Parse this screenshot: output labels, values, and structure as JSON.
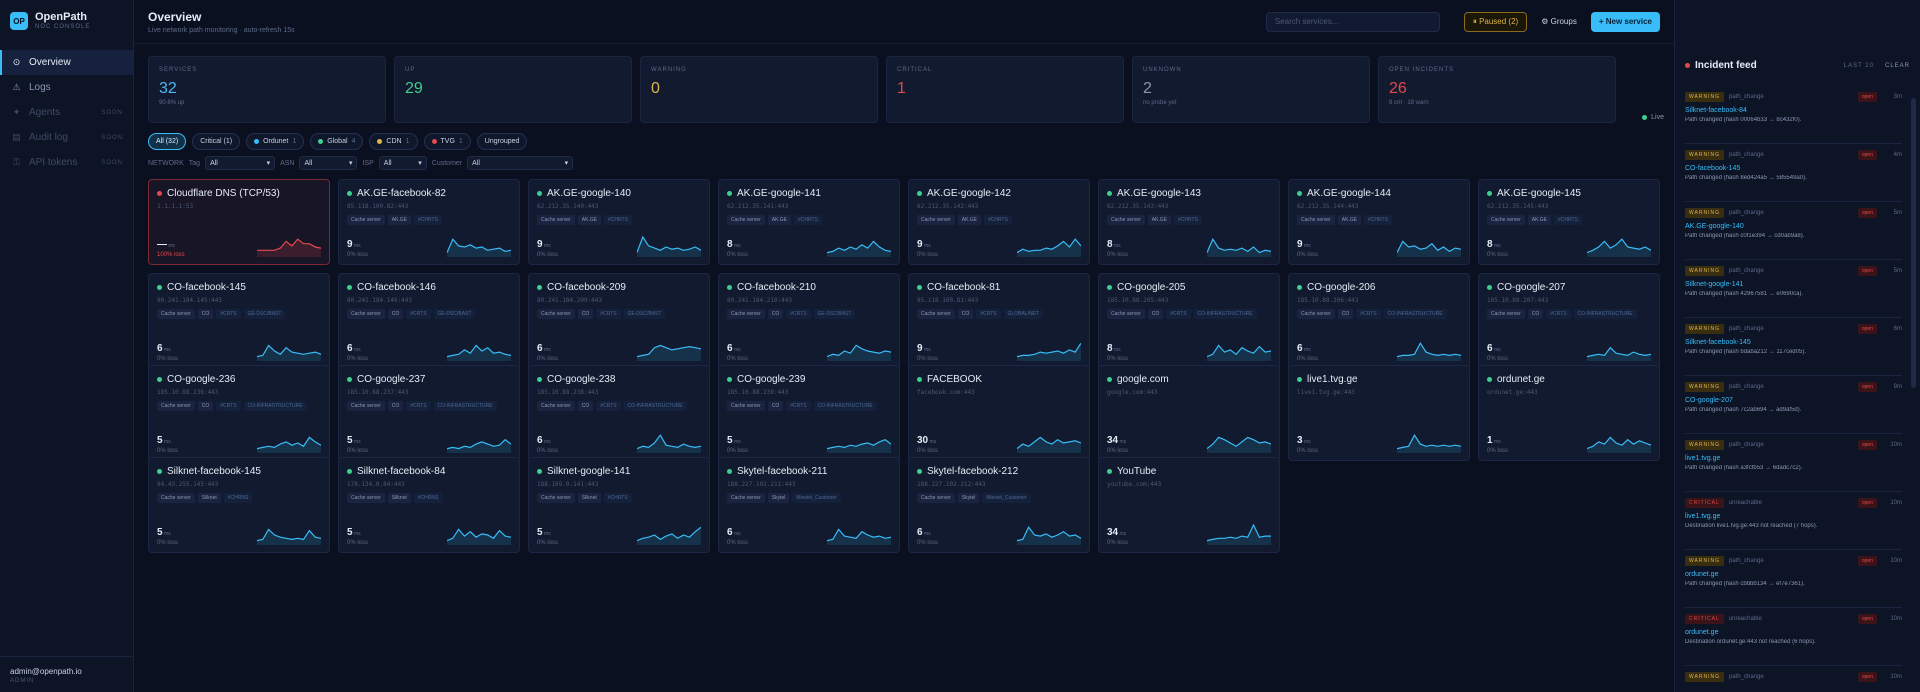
{
  "brand": {
    "name": "OpenPath",
    "sub": "NOC CONSOLE",
    "logo": "OP"
  },
  "nav": [
    {
      "label": "Overview",
      "icon": "grid-icon",
      "active": true,
      "badge": ""
    },
    {
      "label": "Logs",
      "icon": "warning-icon",
      "active": false,
      "badge": ""
    },
    {
      "label": "Agents",
      "icon": "agent-icon",
      "active": false,
      "badge": "SOON",
      "dim": true
    },
    {
      "label": "Audit log",
      "icon": "doc-icon",
      "active": false,
      "badge": "SOON",
      "dim": true
    },
    {
      "label": "API tokens",
      "icon": "key-icon",
      "active": false,
      "badge": "SOON",
      "dim": true
    }
  ],
  "user": {
    "email": "admin@openpath.io",
    "role": "ADMIN"
  },
  "header": {
    "title": "Overview",
    "subtitle": "Live network path monitoring · auto-refresh 15s",
    "search_placeholder": "Search services...",
    "paused": "⏸ Paused (2)",
    "groups": "⚙ Groups",
    "new_service": "+ New service"
  },
  "stats": [
    {
      "label": "SERVICES",
      "value": "32",
      "sub": "90.6% up",
      "color": "#4cb8f5"
    },
    {
      "label": "UP",
      "value": "29",
      "sub": "",
      "color": "#3fcf8e"
    },
    {
      "label": "WARNING",
      "value": "0",
      "sub": "",
      "color": "#e0b54a"
    },
    {
      "label": "CRITICAL",
      "value": "1",
      "sub": "",
      "color": "#e5484d"
    },
    {
      "label": "UNKNOWN",
      "value": "2",
      "sub": "no probe yet",
      "color": "#8b97b1"
    },
    {
      "label": "OPEN INCIDENTS",
      "value": "26",
      "sub": "8 crit · 18 warn",
      "color": "#e5484d"
    }
  ],
  "live_label": "Live",
  "chips": [
    {
      "label": "All (32)",
      "count": "",
      "dot": "",
      "active": true
    },
    {
      "label": "Critical (1)",
      "count": "",
      "dot": "",
      "active": false
    },
    {
      "label": "Ordunet",
      "count": "1",
      "dot": "#38bdf8",
      "active": false
    },
    {
      "label": "Global",
      "count": "4",
      "dot": "#3fcf8e",
      "active": false
    },
    {
      "label": "CDN",
      "count": "1",
      "dot": "#e0b54a",
      "active": false
    },
    {
      "label": "TVG",
      "count": "1",
      "dot": "#e5484d",
      "active": false
    },
    {
      "label": "Ungrouped",
      "count": "",
      "dot": "",
      "active": false
    }
  ],
  "filters": {
    "network": "NETWORK",
    "tag": "Tag",
    "asn": "ASN",
    "isp": "ISP",
    "customer": "Customer",
    "all": "All"
  },
  "services": [
    {
      "name": "Cloudflare DNS (TCP/53)",
      "host": "1.1.1.1:53",
      "tags": [],
      "ms": "—",
      "loss": "100% loss",
      "status": "crit",
      "spark": [
        6,
        6,
        6,
        6,
        8,
        14,
        10,
        16,
        12,
        12,
        9,
        8
      ]
    },
    {
      "name": "AK.GE-facebook-82",
      "host": "85.118.100.82:443",
      "tags": [
        "Cache server",
        "AK.GE",
        "#CHRTS"
      ],
      "ms": "9",
      "loss": "0% loss",
      "status": "up",
      "spark": [
        4,
        16,
        10,
        9,
        11,
        8,
        9,
        6,
        7,
        8,
        5,
        6
      ]
    },
    {
      "name": "AK.GE-google-140",
      "host": "62.212.35.140:443",
      "tags": [
        "Cache server",
        "AK.GE",
        "#CHRTS"
      ],
      "ms": "9",
      "loss": "0% loss",
      "status": "up",
      "spark": [
        4,
        18,
        10,
        8,
        6,
        9,
        7,
        8,
        6,
        7,
        9,
        6
      ]
    },
    {
      "name": "AK.GE-google-141",
      "host": "62.212.35.141:443",
      "tags": [
        "Cache server",
        "AK.GE",
        "#CHRTS"
      ],
      "ms": "8",
      "loss": "0% loss",
      "status": "up",
      "spark": [
        4,
        5,
        8,
        6,
        9,
        7,
        11,
        8,
        14,
        9,
        6,
        5
      ]
    },
    {
      "name": "AK.GE-google-142",
      "host": "62.212.35.142:443",
      "tags": [
        "Cache server",
        "AK.GE",
        "#CHRTS"
      ],
      "ms": "9",
      "loss": "0% loss",
      "status": "up",
      "spark": [
        4,
        7,
        5,
        6,
        6,
        8,
        7,
        10,
        14,
        9,
        16,
        10
      ]
    },
    {
      "name": "AK.GE-google-143",
      "host": "62.212.35.143:443",
      "tags": [
        "Cache server",
        "AK.GE",
        "#CHRTS"
      ],
      "ms": "8",
      "loss": "0% loss",
      "status": "up",
      "spark": [
        4,
        16,
        8,
        6,
        7,
        6,
        8,
        5,
        9,
        4,
        6,
        5
      ]
    },
    {
      "name": "AK.GE-google-144",
      "host": "62.212.35.144:443",
      "tags": [
        "Cache server",
        "AK.GE",
        "#CHRTS"
      ],
      "ms": "9",
      "loss": "0% loss",
      "status": "up",
      "spark": [
        4,
        14,
        9,
        10,
        7,
        8,
        12,
        6,
        9,
        5,
        8,
        7
      ]
    },
    {
      "name": "AK.GE-google-145",
      "host": "62.212.35.145:443",
      "tags": [
        "Cache server",
        "AK.GE",
        "#CHRTS"
      ],
      "ms": "8",
      "loss": "0% loss",
      "status": "up",
      "spark": [
        4,
        6,
        9,
        14,
        8,
        11,
        16,
        9,
        8,
        7,
        9,
        6
      ]
    },
    {
      "name": "CO-facebook-145",
      "host": "80.241.184.145:443",
      "tags": [
        "Cache server",
        "CO",
        "#CRTS",
        "GE-DSC/BAST"
      ],
      "ms": "6",
      "loss": "0% loss",
      "status": "up",
      "spark": [
        4,
        5,
        14,
        9,
        6,
        12,
        8,
        7,
        6,
        7,
        8,
        6
      ]
    },
    {
      "name": "CO-facebook-146",
      "host": "80.241.184.146:443",
      "tags": [
        "Cache server",
        "CO",
        "#CRTS",
        "GE-DSC/BAST"
      ],
      "ms": "6",
      "loss": "0% loss",
      "status": "up",
      "spark": [
        4,
        5,
        6,
        10,
        7,
        14,
        9,
        12,
        7,
        8,
        6,
        5
      ]
    },
    {
      "name": "CO-facebook-209",
      "host": "80.241.184.209:443",
      "tags": [
        "Cache server",
        "CO",
        "#CRTS",
        "GE-DSC/BAST"
      ],
      "ms": "6",
      "loss": "0% loss",
      "status": "up",
      "spark": [
        4,
        5,
        6,
        12,
        14,
        12,
        10,
        11,
        12,
        13,
        12,
        11
      ]
    },
    {
      "name": "CO-facebook-210",
      "host": "80.241.184.210:443",
      "tags": [
        "Cache server",
        "CO",
        "#CRTS",
        "GE-DSC/BAST"
      ],
      "ms": "6",
      "loss": "0% loss",
      "status": "up",
      "spark": [
        4,
        6,
        5,
        9,
        7,
        14,
        11,
        9,
        8,
        7,
        9,
        8
      ]
    },
    {
      "name": "CO-facebook-81",
      "host": "85.118.100.81:443",
      "tags": [
        "Cache server",
        "CO",
        "#CRTS",
        "GLOBAL/NET"
      ],
      "ms": "9",
      "loss": "0% loss",
      "status": "up",
      "spark": [
        4,
        5,
        5,
        6,
        8,
        7,
        8,
        9,
        7,
        10,
        8,
        16
      ]
    },
    {
      "name": "CO-google-205",
      "host": "185.10.88.205:443",
      "tags": [
        "Cache server",
        "CO",
        "#CRTS",
        "CO-INFRASTRUCTURE"
      ],
      "ms": "8",
      "loss": "0% loss",
      "status": "up",
      "spark": [
        4,
        6,
        14,
        8,
        10,
        6,
        12,
        9,
        7,
        13,
        8,
        9
      ]
    },
    {
      "name": "CO-google-206",
      "host": "185.10.88.206:443",
      "tags": [
        "Cache server",
        "CO",
        "#CRTS",
        "CO-INFRASTRUCTURE"
      ],
      "ms": "6",
      "loss": "0% loss",
      "status": "up",
      "spark": [
        4,
        5,
        5,
        6,
        16,
        8,
        6,
        5,
        6,
        5,
        6,
        5
      ]
    },
    {
      "name": "CO-google-207",
      "host": "185.10.88.207:443",
      "tags": [
        "Cache server",
        "CO",
        "#CRTS",
        "CO-INFRASTRUCTURE"
      ],
      "ms": "6",
      "loss": "0% loss",
      "status": "up",
      "spark": [
        4,
        5,
        6,
        5,
        12,
        7,
        6,
        5,
        8,
        6,
        5,
        6
      ]
    },
    {
      "name": "CO-google-236",
      "host": "185.10.88.236:443",
      "tags": [
        "Cache server",
        "CO",
        "#CRTS",
        "CO-INFRASTRUCTURE"
      ],
      "ms": "5",
      "loss": "0% loss",
      "status": "up",
      "spark": [
        4,
        5,
        6,
        5,
        8,
        10,
        7,
        9,
        6,
        14,
        10,
        7
      ]
    },
    {
      "name": "CO-google-237",
      "host": "185.10.88.237:443",
      "tags": [
        "Cache server",
        "CO",
        "#CRTS",
        "CO-INFRASTRUCTURE"
      ],
      "ms": "5",
      "loss": "0% loss",
      "status": "up",
      "spark": [
        4,
        5,
        4,
        6,
        5,
        8,
        10,
        8,
        6,
        7,
        12,
        8
      ]
    },
    {
      "name": "CO-google-238",
      "host": "185.10.88.238:443",
      "tags": [
        "Cache server",
        "CO",
        "#CRTS",
        "CO-INFRASTRUCTURE"
      ],
      "ms": "6",
      "loss": "0% loss",
      "status": "up",
      "spark": [
        4,
        6,
        5,
        9,
        16,
        7,
        6,
        5,
        8,
        6,
        5,
        6
      ]
    },
    {
      "name": "CO-google-239",
      "host": "185.10.88.239:443",
      "tags": [
        "Cache server",
        "CO",
        "#CRTS",
        "CO-INFRASTRUCTURE"
      ],
      "ms": "5",
      "loss": "0% loss",
      "status": "up",
      "spark": [
        4,
        5,
        6,
        5,
        7,
        6,
        8,
        9,
        7,
        10,
        12,
        8
      ]
    },
    {
      "name": "FACEBOOK",
      "host": "facebook.com:443",
      "tags": [],
      "ms": "30",
      "loss": "0% loss",
      "status": "up",
      "spark": [
        4,
        8,
        6,
        10,
        14,
        10,
        8,
        12,
        9,
        10,
        11,
        9
      ]
    },
    {
      "name": "google.com",
      "host": "google.com:443",
      "tags": [],
      "ms": "34",
      "loss": "0% loss",
      "status": "up",
      "spark": [
        4,
        8,
        14,
        12,
        9,
        6,
        10,
        14,
        12,
        9,
        10,
        8
      ]
    },
    {
      "name": "live1.tvg.ge",
      "host": "live1.tvg.ge:443",
      "tags": [],
      "ms": "3",
      "loss": "0% loss",
      "status": "up",
      "spark": [
        4,
        5,
        6,
        16,
        8,
        6,
        7,
        6,
        7,
        6,
        7,
        6
      ]
    },
    {
      "name": "ordunet.ge",
      "host": "ordunet.ge:443",
      "tags": [],
      "ms": "1",
      "loss": "0% loss",
      "status": "up",
      "spark": [
        4,
        6,
        10,
        8,
        14,
        9,
        7,
        12,
        8,
        11,
        9,
        7
      ]
    },
    {
      "name": "Silknet-facebook-145",
      "host": "94.43.255.145:443",
      "tags": [
        "Cache server",
        "Silknet",
        "#CHRNS"
      ],
      "ms": "5",
      "loss": "0% loss",
      "status": "up",
      "spark": [
        4,
        5,
        14,
        9,
        7,
        6,
        5,
        6,
        5,
        13,
        7,
        6
      ]
    },
    {
      "name": "Silknet-facebook-84",
      "host": "178.134.0.84:443",
      "tags": [
        "Cache server",
        "Silknet",
        "#CHRNS"
      ],
      "ms": "5",
      "loss": "0% loss",
      "status": "up",
      "spark": [
        4,
        6,
        14,
        8,
        12,
        7,
        10,
        9,
        6,
        13,
        8,
        7
      ]
    },
    {
      "name": "Silknet-google-141",
      "host": "188.169.0.141:443",
      "tags": [
        "Cache server",
        "Silknet",
        "#CHRTS"
      ],
      "ms": "5",
      "loss": "0% loss",
      "status": "up",
      "spark": [
        4,
        6,
        7,
        9,
        5,
        8,
        10,
        6,
        9,
        7,
        12,
        16
      ]
    },
    {
      "name": "Skytel-facebook-211",
      "host": "188.227.102.211:443",
      "tags": [
        "Cache server",
        "Skytel",
        "Miestel_Customer"
      ],
      "ms": "6",
      "loss": "0% loss",
      "status": "up",
      "spark": [
        4,
        5,
        14,
        8,
        7,
        6,
        12,
        9,
        7,
        8,
        6,
        7
      ]
    },
    {
      "name": "Skytel-facebook-212",
      "host": "188.227.102.212:443",
      "tags": [
        "Cache server",
        "Skytel",
        "Miestel_Customer"
      ],
      "ms": "6",
      "loss": "0% loss",
      "status": "up",
      "spark": [
        4,
        5,
        16,
        9,
        8,
        10,
        7,
        9,
        12,
        8,
        9,
        6
      ]
    },
    {
      "name": "YouTube",
      "host": "youtube.com:443",
      "tags": [],
      "ms": "34",
      "loss": "0% loss",
      "status": "up",
      "spark": [
        4,
        5,
        6,
        6,
        7,
        6,
        8,
        7,
        18,
        7,
        8,
        8
      ]
    }
  ],
  "feed": {
    "title": "Incident feed",
    "meta": "LAST 20",
    "clear": "CLEAR",
    "items": [
      {
        "sev": "WARNING",
        "type": "path_change",
        "open": "open",
        "ago": "3m",
        "svc": "Silknet-facebook-84",
        "desc": "Path changed (hash 00064b33 → 8c432f0)."
      },
      {
        "sev": "WARNING",
        "type": "path_change",
        "open": "open",
        "ago": "4m",
        "svc": "CO-facebook-145",
        "desc": "Path changed (hash 8ed424a5 → 585549a0)."
      },
      {
        "sev": "WARNING",
        "type": "path_change",
        "open": "open",
        "ago": "5m",
        "svc": "AK.GE-google-140",
        "desc": "Path changed (hash c0f1e394 → cd0ab9a8)."
      },
      {
        "sev": "WARNING",
        "type": "path_change",
        "open": "open",
        "ago": "5m",
        "svc": "Silknet-google-141",
        "desc": "Path changed (hash 42967581 → e0690ca)."
      },
      {
        "sev": "WARNING",
        "type": "path_change",
        "open": "open",
        "ago": "6m",
        "svc": "Silknet-facebook-145",
        "desc": "Path changed (hash bdaba212 → 117ced05)."
      },
      {
        "sev": "WARNING",
        "type": "path_change",
        "open": "open",
        "ago": "9m",
        "svc": "CO-google-207",
        "desc": "Path changed (hash 7c2ab694 → ad9af5d)."
      },
      {
        "sev": "WARNING",
        "type": "path_change",
        "open": "open",
        "ago": "10m",
        "svc": "live1.tvg.ge",
        "desc": "Path changed (hash a3fcfb53 → 6dadc7c2)."
      },
      {
        "sev": "CRITICAL",
        "type": "unreachable",
        "open": "open",
        "ago": "10m",
        "svc": "live1.tvg.ge",
        "desc": "Destination live1.tvg.ge:443 not reached (7 hops)."
      },
      {
        "sev": "WARNING",
        "type": "path_change",
        "open": "open",
        "ago": "10m",
        "svc": "ordunet.ge",
        "desc": "Path changed (hash cbbbb134 → ef7e7361)."
      },
      {
        "sev": "CRITICAL",
        "type": "unreachable",
        "open": "open",
        "ago": "10m",
        "svc": "ordunet.ge",
        "desc": "Destination ordunet.ge:443 not reached (6 hops)."
      },
      {
        "sev": "WARNING",
        "type": "path_change",
        "open": "open",
        "ago": "10m",
        "svc": "",
        "desc": ""
      }
    ]
  }
}
